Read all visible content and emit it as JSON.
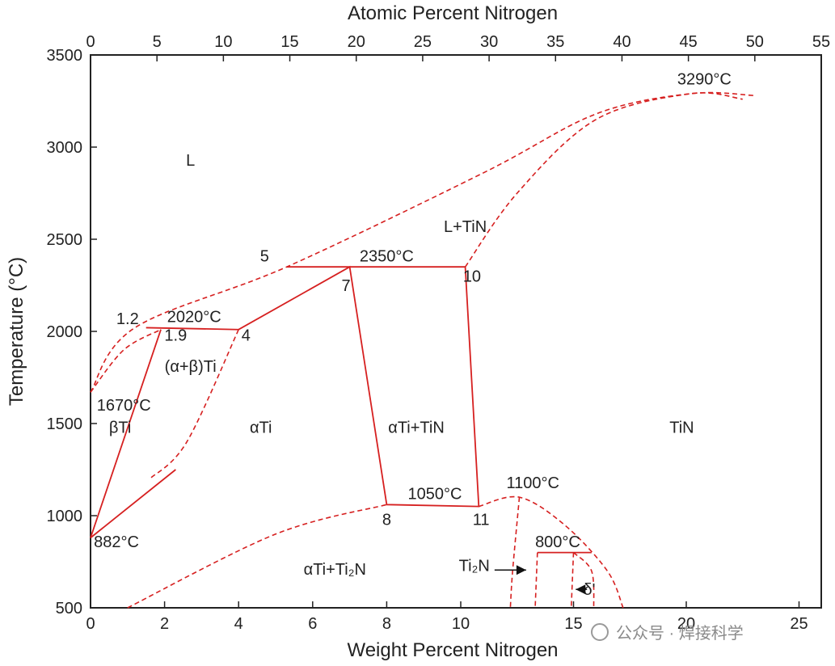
{
  "chart_data": {
    "type": "line",
    "title": "",
    "top_axis_label": "Atomic Percent Nitrogen",
    "xlabel": "Weight Percent Nitrogen",
    "ylabel": "Temperature (°C)",
    "xlim": [
      0,
      26
    ],
    "ylim": [
      500,
      3500
    ],
    "top_xlim": [
      0,
      55
    ],
    "x_ticks": [
      "0",
      "2",
      "4",
      "6",
      "8",
      "10",
      "15",
      "20",
      "25"
    ],
    "x_tick_values": [
      0,
      2,
      4,
      6,
      8,
      10,
      15,
      20,
      25
    ],
    "top_ticks": [
      "0",
      "5",
      "10",
      "15",
      "20",
      "25",
      "30",
      "35",
      "40",
      "45",
      "50",
      "55"
    ],
    "top_tick_values": [
      0,
      5,
      10,
      15,
      20,
      25,
      30,
      35,
      40,
      45,
      50,
      55
    ],
    "y_ticks": [
      "500",
      "1000",
      "1500",
      "2000",
      "2500",
      "3000",
      "3500"
    ],
    "y_tick_values": [
      500,
      1000,
      1500,
      2000,
      2500,
      3000,
      3500
    ],
    "grid": false,
    "line_color": "#d62020",
    "solid_lines": [
      [
        [
          1.5,
          2020
        ],
        [
          4,
          2010
        ],
        [
          7,
          2350
        ],
        [
          8,
          1060
        ],
        [
          10.8,
          1050
        ],
        [
          10.2,
          2350
        ],
        [
          7,
          2350
        ]
      ],
      [
        [
          0,
          880
        ],
        [
          1.9,
          2010
        ]
      ],
      [
        [
          0,
          880
        ],
        [
          2.3,
          1250
        ]
      ],
      [
        [
          5.3,
          2350
        ],
        [
          7,
          2350
        ]
      ],
      [
        [
          13.4,
          800
        ],
        [
          15.8,
          800
        ]
      ]
    ],
    "dashed_lines": [
      [
        [
          0,
          1670
        ],
        [
          1.2,
          2020
        ],
        [
          5.3,
          2350
        ],
        [
          11,
          2860
        ],
        [
          16,
          3180
        ],
        [
          20.2,
          3290
        ],
        [
          23,
          3280
        ]
      ],
      [
        [
          10.2,
          2350
        ],
        [
          12.5,
          2750
        ],
        [
          16,
          3150
        ],
        [
          20.2,
          3290
        ],
        [
          22.5,
          3260
        ]
      ],
      [
        [
          0,
          1670
        ],
        [
          0.9,
          1900
        ],
        [
          1.9,
          2010
        ]
      ],
      [
        [
          4,
          2010
        ],
        [
          2.6,
          1400
        ],
        [
          1.6,
          1200
        ]
      ],
      [
        [
          1,
          500
        ],
        [
          5,
          900
        ],
        [
          8,
          1060
        ]
      ],
      [
        [
          10.8,
          1050
        ],
        [
          12.6,
          1100
        ],
        [
          14.6,
          950
        ],
        [
          16.5,
          700
        ],
        [
          17.2,
          500
        ]
      ],
      [
        [
          12.6,
          1100
        ],
        [
          12.3,
          700
        ],
        [
          12.2,
          500
        ]
      ],
      [
        [
          13.4,
          800
        ],
        [
          13.3,
          500
        ]
      ],
      [
        [
          15,
          800
        ],
        [
          14.9,
          500
        ]
      ],
      [
        [
          15,
          800
        ],
        [
          15.8,
          700
        ],
        [
          15.9,
          500
        ]
      ]
    ],
    "annotations": [
      {
        "text": "L",
        "x": 2.7,
        "y": 2900
      },
      {
        "text": "L+TiN",
        "x": 10.2,
        "y": 2540
      },
      {
        "text": "3290°C",
        "x": 20.8,
        "y": 3340
      },
      {
        "text": "2350°C",
        "x": 8.0,
        "y": 2380
      },
      {
        "text": "5",
        "x": 4.7,
        "y": 2380
      },
      {
        "text": "7",
        "x": 6.9,
        "y": 2220
      },
      {
        "text": "10",
        "x": 10.5,
        "y": 2270
      },
      {
        "text": "1.2",
        "x": 1.0,
        "y": 2040
      },
      {
        "text": "2020°C",
        "x": 2.8,
        "y": 2050
      },
      {
        "text": "1.9",
        "x": 2.3,
        "y": 1950
      },
      {
        "text": "4",
        "x": 4.2,
        "y": 1950
      },
      {
        "text": "(α+β)Ti",
        "x": 2.7,
        "y": 1780
      },
      {
        "text": "1670°C",
        "x": 0.9,
        "y": 1570
      },
      {
        "text": "βTi",
        "x": 0.8,
        "y": 1450
      },
      {
        "text": "αTi",
        "x": 4.6,
        "y": 1450
      },
      {
        "text": "αTi+TiN",
        "x": 8.8,
        "y": 1450
      },
      {
        "text": "TiN",
        "x": 19.8,
        "y": 1450
      },
      {
        "text": "1100°C",
        "x": 13.2,
        "y": 1150
      },
      {
        "text": "1050°C",
        "x": 9.3,
        "y": 1090
      },
      {
        "text": "8",
        "x": 8.0,
        "y": 950
      },
      {
        "text": "11",
        "x": 10.9,
        "y": 950
      },
      {
        "text": "882°C",
        "x": 0.7,
        "y": 830
      },
      {
        "text": "800°C",
        "x": 14.3,
        "y": 830
      },
      {
        "text": "αTi+Ti₂N",
        "x": 6.6,
        "y": 680
      },
      {
        "text": "Ti₂N",
        "x": 10.6,
        "y": 700
      },
      {
        "text": "δ'",
        "x": 15.7,
        "y": 570
      }
    ],
    "arrows": [
      {
        "from": [
          11.5,
          705
        ],
        "to": [
          12.9,
          705
        ]
      },
      {
        "from": [
          15.6,
          600
        ],
        "to": [
          15.1,
          600
        ]
      }
    ]
  },
  "watermark": "公众号 · 焊接科学"
}
